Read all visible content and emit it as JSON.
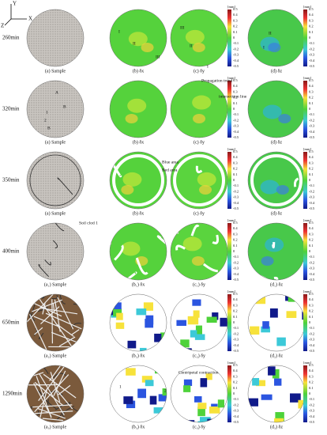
{
  "axes": {
    "y": "Y",
    "x": "X",
    "z": "Z"
  },
  "colorbar": {
    "unit": "[mm]",
    "ticks": [
      "0.5",
      "0.4",
      "0.3",
      "0.2",
      "0.1",
      "0",
      "-0.1",
      "-0.2",
      "-0.3",
      "-0.4",
      "-0.5"
    ]
  },
  "rows": [
    {
      "time": "260min",
      "captions": [
        "(a) Sample",
        "(b) δx",
        "(c) δy",
        "(d) δz"
      ],
      "annotations": [
        "I",
        "II",
        "III",
        "III",
        "II",
        "I",
        "II",
        "I"
      ]
    },
    {
      "time": "320min",
      "captions": [
        "(a) Sample",
        "(b) δx",
        "(c) δy",
        "(d) δz"
      ],
      "annotations": [
        "A",
        "B",
        "1",
        "2",
        "B",
        "Propagation trend",
        "intersection line"
      ]
    },
    {
      "time": "350min",
      "captions": [
        "(a) Sample",
        "(b) δx",
        "(c) δy",
        "(d) δz"
      ],
      "annotations": [
        "Blue area",
        "Red area"
      ]
    },
    {
      "time": "400min",
      "captions": [
        "(a₁) Sample",
        "(b₁) δx",
        "(c₁) δy",
        "(d₁) δz"
      ],
      "annotations": [
        "Soil clod 1"
      ]
    },
    {
      "time": "650min",
      "captions": [
        "(a₂) Sample",
        "(b₂) δx",
        "(c₂) δy",
        "(d₂) δz"
      ],
      "annotations": []
    },
    {
      "time": "1290min",
      "captions": [
        "(a₃) Sample",
        "(b₃) δx",
        "(c₃) δy",
        "(d₃) δz"
      ],
      "annotations": [
        "Centripetal contraction",
        "1",
        "2"
      ]
    }
  ]
}
